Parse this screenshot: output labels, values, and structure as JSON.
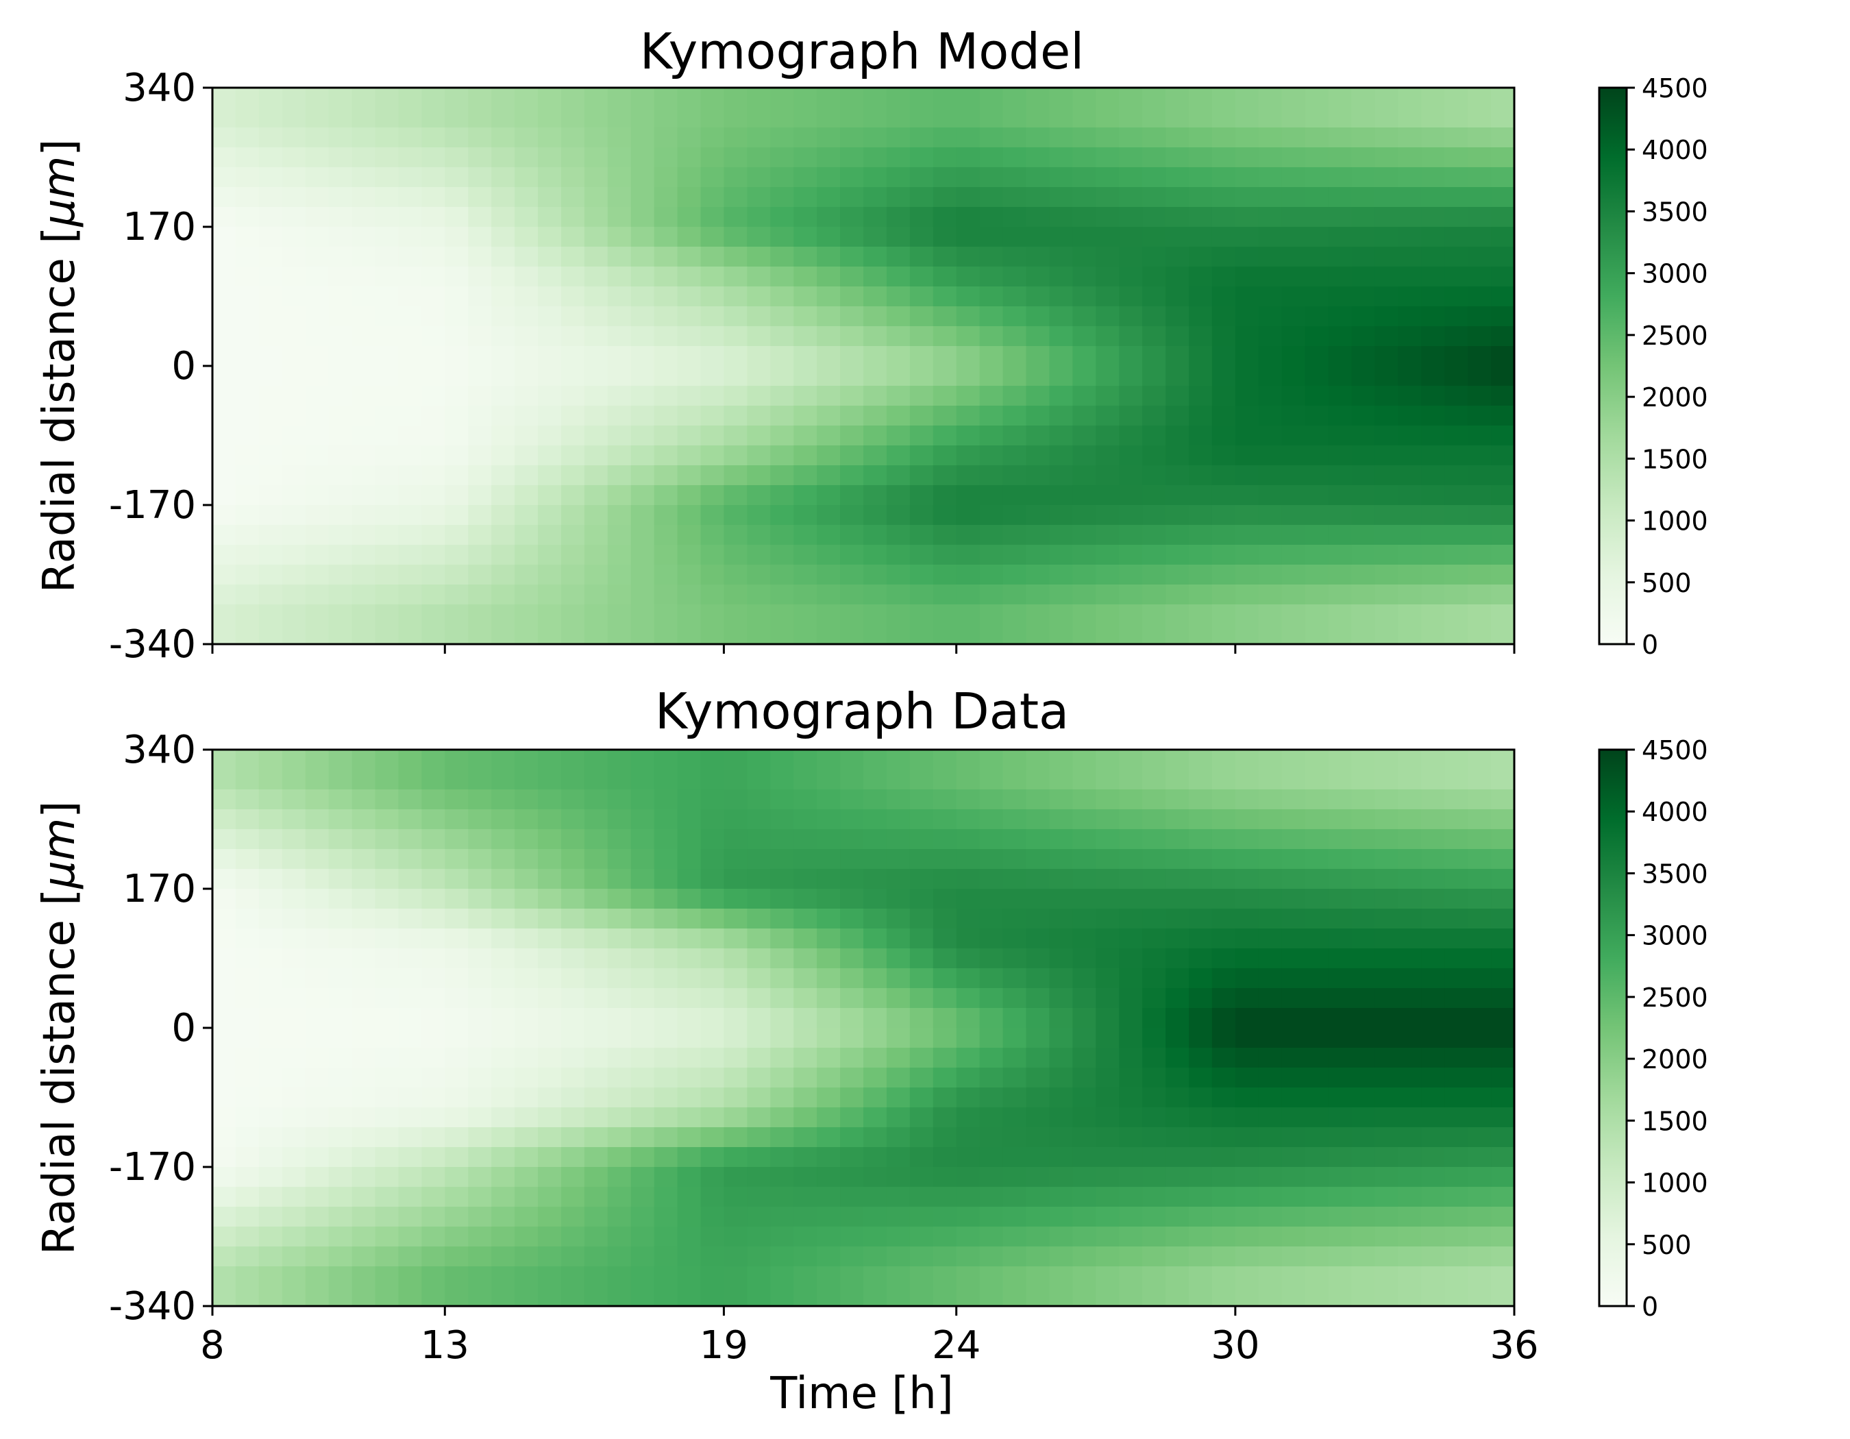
{
  "x_axis": {
    "label": "Time [h]",
    "range": [
      8,
      36
    ],
    "ticks": [
      8,
      13,
      19,
      24,
      30,
      36
    ]
  },
  "y_axis": {
    "label_main": "Radial distance [",
    "label_unit": "μm",
    "label_close": "]",
    "range": [
      -340,
      340
    ],
    "ticks": [
      340,
      170,
      0,
      -170,
      -340
    ]
  },
  "colorbar": {
    "colormap": "Greens",
    "range": [
      0,
      4500
    ],
    "ticks": [
      0,
      500,
      1000,
      1500,
      2000,
      2500,
      3000,
      3500,
      4000,
      4500
    ],
    "colors": [
      "#f7fcf5",
      "#e5f5e0",
      "#c7e9c0",
      "#a1d99b",
      "#74c476",
      "#41ab5d",
      "#238b45",
      "#006d2c",
      "#00441b"
    ]
  },
  "chart_data": [
    {
      "type": "heatmap",
      "title": "Kymograph Model",
      "time": [
        8,
        13,
        19,
        24,
        30,
        36
      ],
      "radial_distance": [
        300,
        170,
        100,
        0,
        -100,
        -170,
        -300
      ],
      "values": [
        [
          800,
          1400,
          2200,
          2500,
          2000,
          1600
        ],
        [
          50,
          400,
          2600,
          3600,
          3400,
          3500
        ],
        [
          50,
          150,
          1600,
          3000,
          3800,
          3800
        ],
        [
          50,
          100,
          700,
          1800,
          3800,
          4500
        ],
        [
          50,
          150,
          1600,
          3000,
          3800,
          3800
        ],
        [
          50,
          400,
          2600,
          3600,
          3400,
          3500
        ],
        [
          800,
          1400,
          2200,
          2500,
          2000,
          1600
        ]
      ]
    },
    {
      "type": "heatmap",
      "title": "Kymograph Data",
      "time": [
        8,
        13,
        19,
        24,
        30,
        36
      ],
      "radial_distance": [
        300,
        170,
        100,
        0,
        -100,
        -170,
        -300
      ],
      "values": [
        [
          1400,
          2400,
          2900,
          2400,
          1800,
          1500
        ],
        [
          100,
          1200,
          3100,
          3400,
          3300,
          3100
        ],
        [
          50,
          300,
          1500,
          3400,
          3800,
          3800
        ],
        [
          50,
          100,
          700,
          2300,
          4500,
          4500
        ],
        [
          50,
          300,
          1500,
          3300,
          3800,
          3800
        ],
        [
          100,
          1200,
          3100,
          3400,
          3300,
          3100
        ],
        [
          1400,
          2400,
          2900,
          2400,
          1800,
          1500
        ]
      ]
    }
  ]
}
